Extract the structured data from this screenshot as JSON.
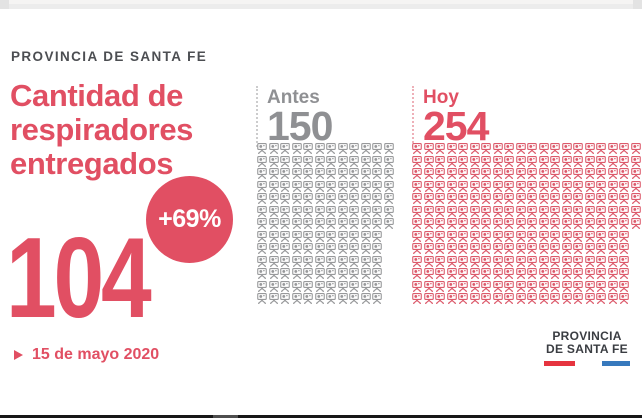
{
  "header": {
    "kicker": "PROVINCIA DE SANTA FE"
  },
  "title_lines": [
    "Cantidad de",
    "respiradores",
    "entregados"
  ],
  "highlight": {
    "value": "104",
    "badge": "+69%"
  },
  "date": "15 de mayo 2020",
  "groups": [
    {
      "label": "Antes",
      "value": "150",
      "count": 150,
      "color_key": "icon_gray"
    },
    {
      "label": "Hoy",
      "value": "254",
      "count": 254,
      "color_key": "icon_red"
    }
  ],
  "footer_logo": {
    "line1": "PROVINCIA",
    "line2": "DE SANTA FE"
  },
  "colors": {
    "accent_red": "#e14f63",
    "icon_red": "#dc5a6b",
    "icon_gray": "#98999b",
    "gray_text": "#8f9093",
    "flag_red": "#e6343f",
    "flag_blue": "#3779bd"
  },
  "chart_data": {
    "type": "pictogram",
    "title": "Cantidad de respiradores entregados",
    "categories": [
      "Antes",
      "Hoy"
    ],
    "values": [
      150,
      254
    ],
    "delivered": 104,
    "change_pct": 69,
    "change_label": "+69%",
    "date": "15 de mayo 2020",
    "unit": "respiradores",
    "icon": "ventilator",
    "layout": {
      "rows": 13,
      "fill": "column-major",
      "legend_position": "none"
    }
  }
}
